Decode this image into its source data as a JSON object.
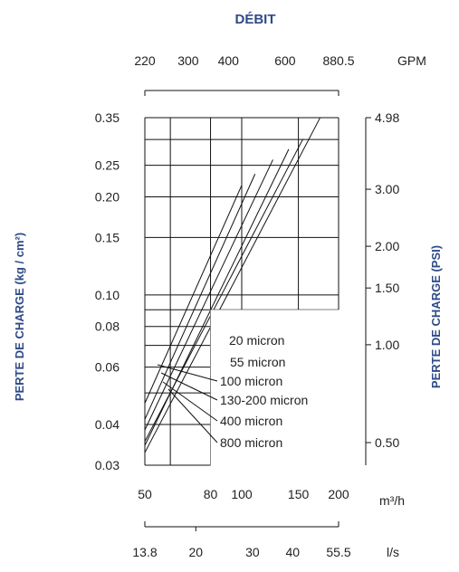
{
  "chart_data": {
    "type": "line",
    "title": "DÉBIT",
    "ylabel_left": "PERTE DE CHARGE (kg / cm²)",
    "ylabel_right": "PERTE DE CHARGE (PSI)",
    "x_scale": "log",
    "y_scale": "log",
    "xlim": [
      50,
      200
    ],
    "ylim": [
      0.03,
      0.35
    ],
    "x_unit_main": "m³/h",
    "x_unit_top": "GPM",
    "x_unit_bottom": "l/s",
    "x_ticks_main": [
      "50",
      "80",
      "100",
      "150",
      "200"
    ],
    "x_ticks_top": [
      {
        "label": "220",
        "value": 50
      },
      {
        "label": "300",
        "value": 68.2
      },
      {
        "label": "400",
        "value": 90.9
      },
      {
        "label": "600",
        "value": 136.4
      },
      {
        "label": "880.5",
        "value": 200
      }
    ],
    "x_ticks_bottom": [
      {
        "label": "13.8",
        "value": 50
      },
      {
        "label": "20",
        "value": 72
      },
      {
        "label": "30",
        "value": 108
      },
      {
        "label": "40",
        "value": 144
      },
      {
        "label": "55.5",
        "value": 200
      }
    ],
    "y_ticks_left": [
      "0.35",
      "0.25",
      "0.20",
      "0.15",
      "0.10",
      "0.08",
      "0.06",
      "0.04",
      "0.03"
    ],
    "y_ticks_right": [
      {
        "label": "4.98",
        "value": 0.35
      },
      {
        "label": "3.00",
        "value": 0.211
      },
      {
        "label": "2.00",
        "value": 0.141
      },
      {
        "label": "1.50",
        "value": 0.105
      },
      {
        "label": "1.00",
        "value": 0.0703
      },
      {
        "label": "0.50",
        "value": 0.0352
      }
    ],
    "grid_x": [
      50,
      60,
      80,
      100,
      150,
      200
    ],
    "grid_y": [
      0.03,
      0.04,
      0.05,
      0.06,
      0.07,
      0.08,
      0.09,
      0.1,
      0.15,
      0.2,
      0.25,
      0.3,
      0.35
    ],
    "series": [
      {
        "name": "20 micron",
        "points": [
          [
            50,
            0.0465
          ],
          [
            100,
            0.217
          ]
        ]
      },
      {
        "name": "55 micron",
        "points": [
          [
            50,
            0.0415
          ],
          [
            110,
            0.235
          ]
        ]
      },
      {
        "name": "100 micron",
        "points": [
          [
            50,
            0.0385
          ],
          [
            125,
            0.26
          ]
        ]
      },
      {
        "name": "130-200 micron",
        "points": [
          [
            50,
            0.0345
          ],
          [
            140,
            0.28
          ]
        ]
      },
      {
        "name": "400 micron",
        "points": [
          [
            50,
            0.0355
          ],
          [
            155,
            0.301
          ]
        ]
      },
      {
        "name": "800 micron",
        "points": [
          [
            50,
            0.0328
          ],
          [
            175,
            0.349
          ]
        ]
      }
    ],
    "legend_placement": "lower-right",
    "grid": true
  }
}
